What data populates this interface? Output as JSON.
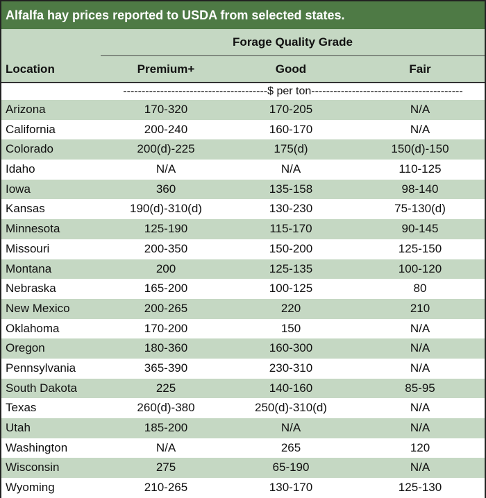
{
  "title": "Alfalfa hay prices reported to USDA from selected states.",
  "header": {
    "group_label": "Forage Quality Grade",
    "col_location": "Location",
    "col_premium": "Premium+",
    "col_good": "Good",
    "col_fair": "Fair"
  },
  "unit_label": "---------------------------------------$ per ton-----------------------------------------",
  "colors": {
    "title_bg": "#4e7a45",
    "band": "#c5d8c3"
  },
  "rows": [
    {
      "location": "Arizona",
      "premium": "170-320",
      "good": "170-205",
      "fair": "N/A"
    },
    {
      "location": "California",
      "premium": "200-240",
      "good": "160-170",
      "fair": "N/A"
    },
    {
      "location": "Colorado",
      "premium": "200(d)-225",
      "good": "175(d)",
      "fair": "150(d)-150"
    },
    {
      "location": "Idaho",
      "premium": "N/A",
      "good": "N/A",
      "fair": "110-125"
    },
    {
      "location": "Iowa",
      "premium": "360",
      "good": "135-158",
      "fair": "98-140"
    },
    {
      "location": "Kansas",
      "premium": "190(d)-310(d)",
      "good": "130-230",
      "fair": "75-130(d)"
    },
    {
      "location": "Minnesota",
      "premium": "125-190",
      "good": "115-170",
      "fair": "90-145"
    },
    {
      "location": "Missouri",
      "premium": "200-350",
      "good": "150-200",
      "fair": "125-150"
    },
    {
      "location": "Montana",
      "premium": "200",
      "good": "125-135",
      "fair": "100-120"
    },
    {
      "location": "Nebraska",
      "premium": "165-200",
      "good": "100-125",
      "fair": "80"
    },
    {
      "location": "New Mexico",
      "premium": "200-265",
      "good": "220",
      "fair": "210"
    },
    {
      "location": "Oklahoma",
      "premium": "170-200",
      "good": "150",
      "fair": "N/A"
    },
    {
      "location": "Oregon",
      "premium": "180-360",
      "good": "160-300",
      "fair": "N/A"
    },
    {
      "location": "Pennsylvania",
      "premium": "365-390",
      "good": "230-310",
      "fair": "N/A"
    },
    {
      "location": "South Dakota",
      "premium": "225",
      "good": "140-160",
      "fair": "85-95"
    },
    {
      "location": "Texas",
      "premium": "260(d)-380",
      "good": "250(d)-310(d)",
      "fair": "N/A"
    },
    {
      "location": "Utah",
      "premium": "185-200",
      "good": "N/A",
      "fair": "N/A"
    },
    {
      "location": "Washington",
      "premium": "N/A",
      "good": "265",
      "fair": "120"
    },
    {
      "location": "Wisconsin",
      "premium": "275",
      "good": "65-190",
      "fair": "N/A"
    },
    {
      "location": "Wyoming",
      "premium": "210-265",
      "good": "130-170",
      "fair": "125-130"
    }
  ]
}
